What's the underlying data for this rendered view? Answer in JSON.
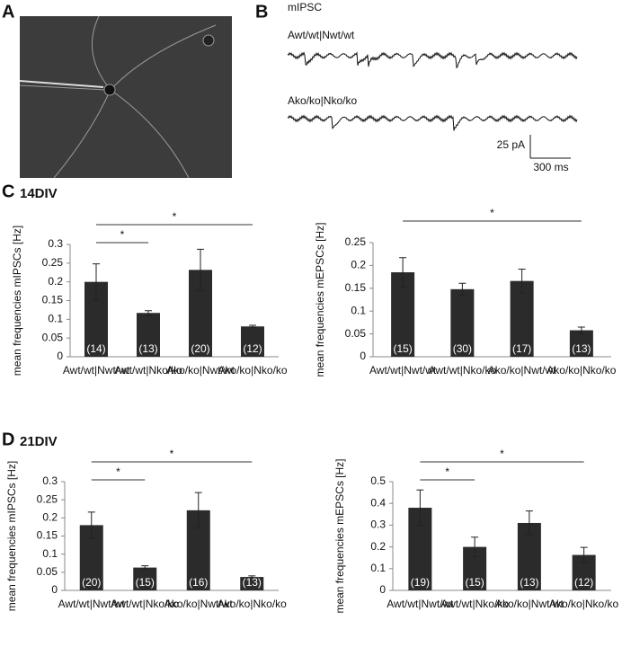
{
  "panels": {
    "a": "A",
    "b": "B",
    "c": "C",
    "d": "D",
    "c_title": "14DIV",
    "d_title": "21DIV"
  },
  "trace": {
    "title": "mIPSC",
    "wt": "Awt/wt|Nwt/wt",
    "ko": "Ako/ko|Nko/ko",
    "scale_y": "25 pA",
    "scale_x": "300 ms"
  },
  "chart_data": [
    {
      "type": "bar",
      "y_label": "mean frequencies mIPSCs [Hz]",
      "color": "#2b2b2b",
      "categories": [
        "Awt/wt|Nwt/wt",
        "Awt/wt|Nko/ko",
        "Ako/ko|Nwt/wt",
        "Ako/ko|Nko/ko"
      ],
      "values": [
        0.2,
        0.117,
        0.232,
        0.081
      ],
      "errors": [
        0.048,
        0.006,
        0.055,
        0.003
      ],
      "n_labels": [
        "(14)",
        "(13)",
        "(20)",
        "(12)"
      ],
      "ylim": [
        0,
        0.3
      ],
      "yticks": [
        0,
        0.05,
        0.1,
        0.15,
        0.2,
        0.25,
        0.3
      ],
      "annotations": [
        {
          "text": "*",
          "between": [
            0,
            1
          ]
        },
        {
          "text": "*",
          "between": [
            0,
            3
          ]
        }
      ]
    },
    {
      "type": "bar",
      "y_label": "mean frequencies mEPSCs  [Hz]",
      "color": "#2b2b2b",
      "categories": [
        "Awt/wt|Nwt/wt",
        "Awt/wt|Nko/ko",
        "Ako/ko|Nwt/wt",
        "Ako/ko|Nko/ko"
      ],
      "values": [
        0.185,
        0.148,
        0.166,
        0.058
      ],
      "errors": [
        0.032,
        0.013,
        0.026,
        0.007
      ],
      "n_labels": [
        "(15)",
        "(30)",
        "(17)",
        "(13)"
      ],
      "ylim": [
        0,
        0.25
      ],
      "yticks": [
        0,
        0.05,
        0.1,
        0.15,
        0.2,
        0.25
      ],
      "annotations": [
        {
          "text": "*",
          "between": [
            0,
            3
          ]
        }
      ]
    },
    {
      "type": "bar",
      "y_label": "mean frequencies mIPSCs [Hz]",
      "color": "#2b2b2b",
      "categories": [
        "Awt/wt|Nwt/wt",
        "Awt/wt|Nko/ko",
        "Ako/ko|Nwt/wt",
        "Ako/ko|Nko/ko"
      ],
      "values": [
        0.18,
        0.063,
        0.221,
        0.037
      ],
      "errors": [
        0.036,
        0.005,
        0.049,
        0.003
      ],
      "n_labels": [
        "(20)",
        "(15)",
        "(16)",
        "(13)"
      ],
      "ylim": [
        0,
        0.3
      ],
      "yticks": [
        0,
        0.05,
        0.1,
        0.15,
        0.2,
        0.25,
        0.3
      ],
      "annotations": [
        {
          "text": "*",
          "between": [
            0,
            1
          ]
        },
        {
          "text": "*",
          "between": [
            0,
            3
          ]
        }
      ]
    },
    {
      "type": "bar",
      "y_label": "mean frequencies mEPSCs [Hz]",
      "color": "#2b2b2b",
      "categories": [
        "Awt/wt|Nwt/wt",
        "Awt/wt|Nko/ko",
        "Ako/ko|Nwt/wt",
        "Ako/ko|Nko/ko"
      ],
      "values": [
        0.38,
        0.2,
        0.31,
        0.163
      ],
      "errors": [
        0.082,
        0.045,
        0.055,
        0.035
      ],
      "n_labels": [
        "(19)",
        "(15)",
        "(13)",
        "(12)"
      ],
      "ylim": [
        0,
        0.5
      ],
      "yticks": [
        0,
        0.1,
        0.2,
        0.3,
        0.4,
        0.5
      ],
      "annotations": [
        {
          "text": "*",
          "between": [
            0,
            1
          ]
        },
        {
          "text": "*",
          "between": [
            0,
            3
          ]
        }
      ]
    }
  ]
}
